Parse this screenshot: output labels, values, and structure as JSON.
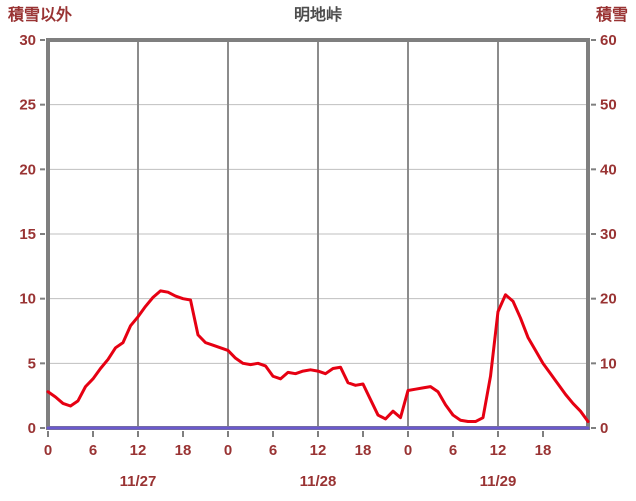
{
  "header": {
    "left_axis_title": "積雪以外",
    "station_title": "明地峠",
    "right_axis_title": "積雪"
  },
  "colors": {
    "axis_text": "#993333",
    "title_text": "#4d4d4d",
    "plot_border": "#7f7f7f",
    "grid_horizontal": "#bfbfbf",
    "grid_vertical": "#8c8c8c",
    "series_main": "#e60012",
    "series_snow": "#6a5acd"
  },
  "chart_data": {
    "type": "line",
    "title": "明地峠",
    "x_axis": {
      "unit": "hour",
      "total_hours": 72,
      "tick_hours": [
        0,
        6,
        12,
        18,
        24,
        30,
        36,
        42,
        48,
        54,
        60,
        66
      ],
      "tick_labels": [
        "0",
        "6",
        "12",
        "18",
        "0",
        "6",
        "12",
        "18",
        "0",
        "6",
        "12",
        "18"
      ],
      "gridline_hours": [
        12,
        24,
        36,
        48,
        60
      ],
      "day_labels": [
        {
          "label": "11/27",
          "center_hour": 12
        },
        {
          "label": "11/28",
          "center_hour": 36
        },
        {
          "label": "11/29",
          "center_hour": 60
        }
      ]
    },
    "y_left": {
      "title": "積雪以外",
      "min": 0,
      "max": 30,
      "ticks": [
        0,
        5,
        10,
        15,
        20,
        25,
        30
      ]
    },
    "y_right": {
      "title": "積雪",
      "min": 0,
      "max": 60,
      "ticks": [
        0,
        10,
        20,
        30,
        40,
        50,
        60
      ]
    },
    "grid": true,
    "legend": "none",
    "series": [
      {
        "name": "積雪以外",
        "axis": "left",
        "color_key": "series_main",
        "width": 3,
        "values": [
          2.8,
          2.4,
          1.9,
          1.7,
          2.1,
          3.2,
          3.8,
          4.6,
          5.3,
          6.2,
          6.6,
          7.9,
          8.6,
          9.4,
          10.1,
          10.6,
          10.5,
          10.2,
          10.0,
          9.9,
          7.2,
          6.6,
          6.4,
          6.2,
          6.0,
          5.4,
          5.0,
          4.9,
          5.0,
          4.8,
          4.0,
          3.8,
          4.3,
          4.2,
          4.4,
          4.5,
          4.4,
          4.2,
          4.6,
          4.7,
          3.5,
          3.3,
          3.4,
          2.2,
          1.0,
          0.7,
          1.3,
          0.8,
          2.9,
          3.0,
          3.1,
          3.2,
          2.8,
          1.8,
          1.0,
          0.6,
          0.5,
          0.5,
          0.8,
          4.0,
          9.0,
          10.3,
          9.8,
          8.5,
          7.0,
          6.0,
          5.0,
          4.2,
          3.4,
          2.6,
          1.9,
          1.3,
          0.5
        ]
      },
      {
        "name": "積雪",
        "axis": "right",
        "color_key": "series_snow",
        "width": 3,
        "values": [
          0,
          0,
          0,
          0,
          0,
          0,
          0,
          0,
          0,
          0,
          0,
          0,
          0,
          0,
          0,
          0,
          0,
          0,
          0,
          0,
          0,
          0,
          0,
          0,
          0,
          0,
          0,
          0,
          0,
          0,
          0,
          0,
          0,
          0,
          0,
          0,
          0,
          0,
          0,
          0,
          0,
          0,
          0,
          0,
          0,
          0,
          0,
          0,
          0,
          0,
          0,
          0,
          0,
          0,
          0,
          0,
          0,
          0,
          0,
          0,
          0,
          0,
          0,
          0,
          0,
          0,
          0,
          0,
          0,
          0,
          0,
          0,
          0
        ]
      }
    ]
  }
}
